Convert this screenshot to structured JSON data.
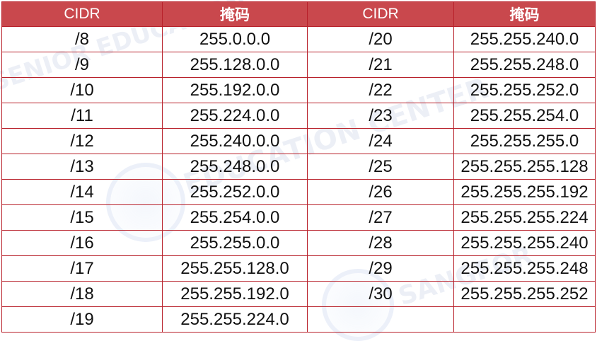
{
  "headers": [
    "CIDR",
    "掩码",
    "CIDR",
    "掩码"
  ],
  "rows": [
    [
      "/8",
      "255.0.0.0",
      "/20",
      "255.255.240.0"
    ],
    [
      "/9",
      "255.128.0.0",
      "/21",
      "255.255.248.0"
    ],
    [
      "/10",
      "255.192.0.0",
      "/22",
      "255.255.252.0"
    ],
    [
      "/11",
      "255.224.0.0",
      "/23",
      "255.255.254.0"
    ],
    [
      "/12",
      "255.240.0.0",
      "/24",
      "255.255.255.0"
    ],
    [
      "/13",
      "255.248.0.0",
      "/25",
      "255.255.255.128"
    ],
    [
      "/14",
      "255.252.0.0",
      "/26",
      "255.255.255.192"
    ],
    [
      "/15",
      "255.254.0.0",
      "/27",
      "255.255.255.224"
    ],
    [
      "/16",
      "255.255.0.0",
      "/28",
      "255.255.255.240"
    ],
    [
      "/17",
      "255.255.128.0",
      "/29",
      "255.255.255.248"
    ],
    [
      "/18",
      "255.255.192.0",
      "/30",
      "255.255.255.252"
    ],
    [
      "/19",
      "255.255.224.0",
      "",
      ""
    ]
  ],
  "colors": {
    "header_bg": "#c9484d",
    "border": "#b8202a",
    "header_text": "#ffffff"
  }
}
